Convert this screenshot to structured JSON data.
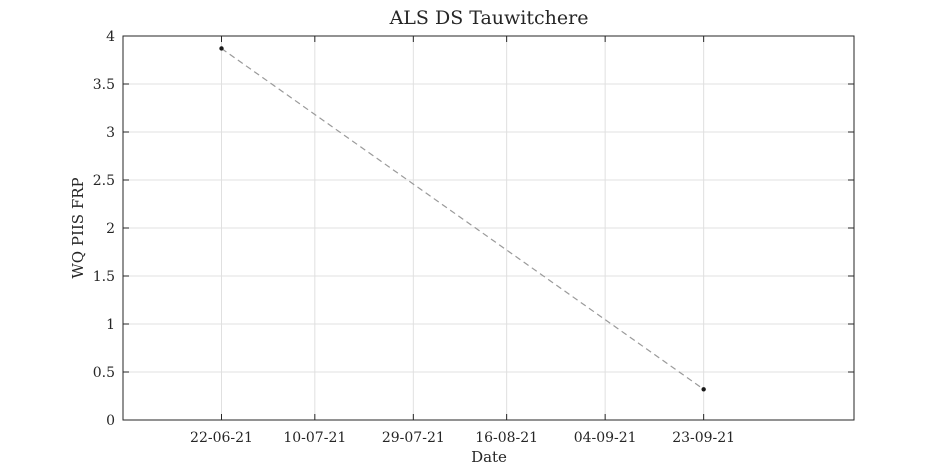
{
  "chart_data": {
    "type": "line",
    "title": "ALS DS Tauwitchere",
    "xlabel": "Date",
    "ylabel": "WQ PIIS FRP",
    "x_tick_labels": [
      "22-06-21",
      "10-07-21",
      "29-07-21",
      "16-08-21",
      "04-09-21",
      "23-09-21"
    ],
    "x_ticks": [
      "2021-06-22",
      "2021-07-10",
      "2021-07-29",
      "2021-08-16",
      "2021-09-04",
      "2021-09-23"
    ],
    "xlim": [
      "2021-06-03",
      "2021-10-22"
    ],
    "ylim": [
      0,
      4
    ],
    "y_ticks": [
      0,
      0.5,
      1,
      1.5,
      2,
      2.5,
      3,
      3.5,
      4
    ],
    "y_tick_labels": [
      "0",
      "0.5",
      "1",
      "1.5",
      "2",
      "2.5",
      "3",
      "3.5",
      "4"
    ],
    "grid": true,
    "series": [
      {
        "x": [
          "2021-06-22",
          "2021-09-23"
        ],
        "y": [
          3.87,
          0.32
        ],
        "line_style": "dashed",
        "line_color": "#9a9a9a",
        "marker": "point",
        "marker_color": "#1a1a1a"
      }
    ]
  }
}
